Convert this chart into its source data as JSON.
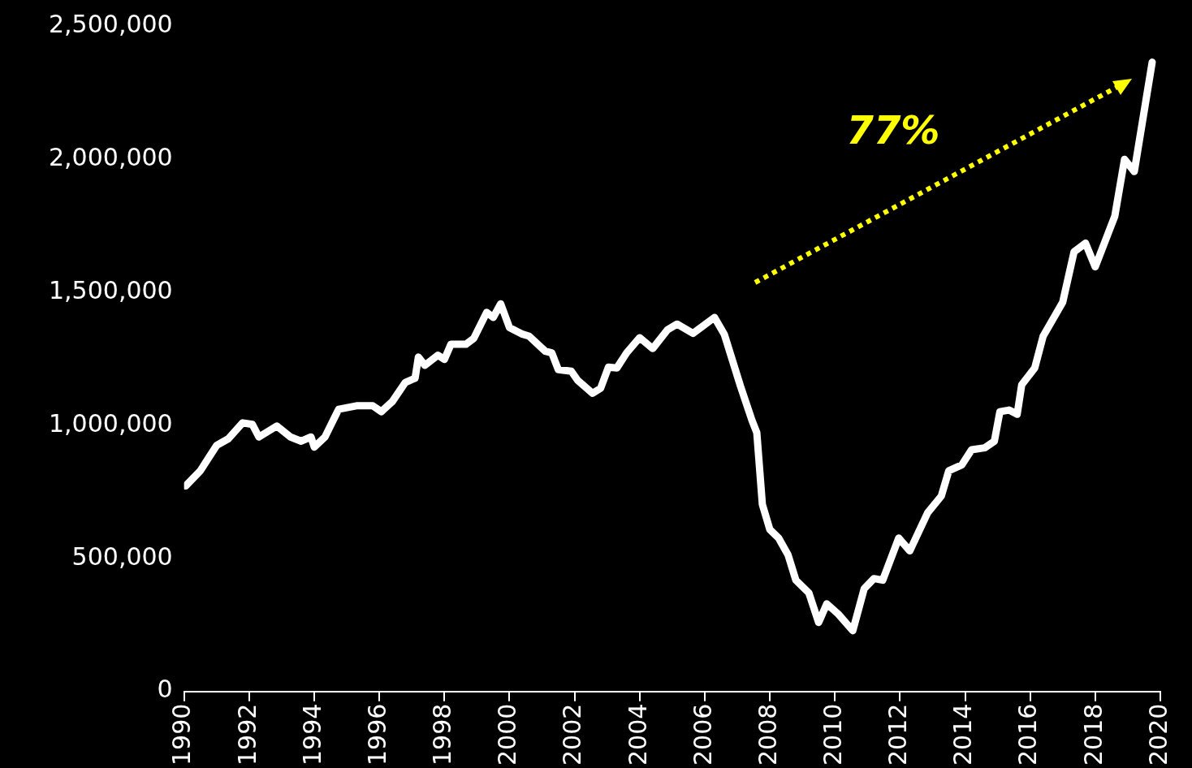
{
  "chart_data": {
    "type": "line",
    "x": [
      1990.05,
      1990.5,
      1991.0,
      1991.36,
      1991.8,
      1992.1,
      1992.3,
      1992.85,
      1993.27,
      1993.6,
      1993.9,
      1994.0,
      1994.33,
      1994.75,
      1995.3,
      1995.8,
      1996.06,
      1996.4,
      1996.8,
      1997.1,
      1997.2,
      1997.4,
      1997.8,
      1998.0,
      1998.2,
      1998.66,
      1998.9,
      1999.3,
      1999.5,
      1999.73,
      2000.0,
      2000.4,
      2000.6,
      2001.1,
      2001.3,
      2001.5,
      2001.9,
      2002.1,
      2002.55,
      2002.8,
      2003.04,
      2003.3,
      2003.6,
      2004.0,
      2004.4,
      2004.85,
      2005.15,
      2005.64,
      2006.3,
      2006.6,
      2007.1,
      2007.45,
      2007.6,
      2007.77,
      2008.0,
      2008.27,
      2008.56,
      2008.8,
      2009.2,
      2009.5,
      2009.75,
      2010.1,
      2010.55,
      2010.9,
      2011.2,
      2011.47,
      2011.96,
      2012.3,
      2012.85,
      2013.27,
      2013.5,
      2013.9,
      2014.2,
      2014.6,
      2014.9,
      2015.07,
      2015.35,
      2015.6,
      2015.74,
      2016.14,
      2016.4,
      2017.0,
      2017.35,
      2017.7,
      2018.0,
      2018.6,
      2018.9,
      2019.2,
      2019.75
    ],
    "series": [
      {
        "color": "#ffffff",
        "values": [
          772000,
          829000,
          924000,
          949000,
          1009000,
          1003000,
          956000,
          997000,
          956000,
          940000,
          956000,
          918000,
          956000,
          1060000,
          1073000,
          1073000,
          1051000,
          1089000,
          1161000,
          1177000,
          1256000,
          1225000,
          1263000,
          1247000,
          1304000,
          1304000,
          1326000,
          1424000,
          1405000,
          1456000,
          1367000,
          1342000,
          1335000,
          1278000,
          1272000,
          1209000,
          1203000,
          1168000,
          1120000,
          1139000,
          1218000,
          1215000,
          1272000,
          1329000,
          1288000,
          1358000,
          1380000,
          1345000,
          1405000,
          1342000,
          1146000,
          1019000,
          972000,
          703000,
          608000,
          576000,
          513000,
          418000,
          370000,
          259000,
          329000,
          291000,
          228000,
          386000,
          424000,
          418000,
          576000,
          528000,
          671000,
          734000,
          829000,
          851000,
          908000,
          915000,
          940000,
          1051000,
          1057000,
          1041000,
          1152000,
          1215000,
          1335000,
          1462000,
          1652000,
          1684000,
          1595000,
          1785000,
          1999000,
          1953000,
          2364000
        ]
      }
    ],
    "xlim": [
      1990,
      2020
    ],
    "xticks": [
      1990,
      1992,
      1994,
      1996,
      1998,
      2000,
      2002,
      2004,
      2006,
      2008,
      2010,
      2012,
      2014,
      2016,
      2018,
      2020
    ],
    "ylim": [
      0,
      2500000
    ],
    "yticks": [
      {
        "value": 0,
        "label": "0"
      },
      {
        "value": 500000,
        "label": "500,000"
      },
      {
        "value": 1000000,
        "label": "1,000,000"
      },
      {
        "value": 1500000,
        "label": "1,500,000"
      },
      {
        "value": 2000000,
        "label": "2,000,000"
      },
      {
        "value": 2500000,
        "label": "2,500,000"
      }
    ],
    "grid": false,
    "legend": false,
    "marker": "none",
    "line_style": "solid",
    "annotations": [
      "77%"
    ]
  }
}
